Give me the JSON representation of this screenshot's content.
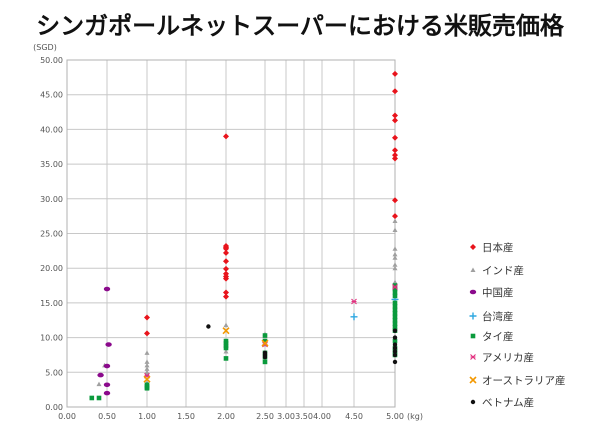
{
  "chart_data": {
    "type": "scatter",
    "title": "シンガポールネットスーパーにおける米販売価格",
    "xlabel": "(kg)",
    "ylabel": "(SGD)",
    "xticks": [
      0,
      0.5,
      1,
      1.5,
      2,
      2.5,
      3,
      3.5,
      4,
      4.5,
      5
    ],
    "xtick_labels": [
      "0.00",
      "0.50",
      "1.00",
      "1.50",
      "2.00",
      "2.50",
      "3.00",
      "3.50",
      "4.00",
      "4.50",
      "5.00"
    ],
    "yticks": [
      0,
      5,
      10,
      15,
      20,
      25,
      30,
      35,
      40,
      45,
      50
    ],
    "ytick_labels": [
      "0.00",
      "5.00",
      "10.00",
      "15.00",
      "20.00",
      "25.00",
      "30.00",
      "35.00",
      "40.00",
      "45.00",
      "50.00"
    ],
    "xlim": [
      0,
      5
    ],
    "ylim": [
      0,
      50
    ],
    "grid": true,
    "legend_position": "right",
    "series": [
      {
        "name": "日本産",
        "marker": "diamond",
        "color": "#e8141c",
        "points": [
          [
            1,
            12.9
          ],
          [
            1,
            10.6
          ],
          [
            2,
            39.0
          ],
          [
            2,
            23.2
          ],
          [
            2,
            23.0
          ],
          [
            2,
            22.8
          ],
          [
            2,
            22.2
          ],
          [
            2,
            21.0
          ],
          [
            2,
            19.9
          ],
          [
            2,
            19.2
          ],
          [
            2,
            18.8
          ],
          [
            2,
            18.5
          ],
          [
            2,
            16.5
          ],
          [
            2,
            15.9
          ],
          [
            5,
            48.0
          ],
          [
            5,
            45.5
          ],
          [
            5,
            42.0
          ],
          [
            5,
            41.3
          ],
          [
            5,
            38.8
          ],
          [
            5,
            37.0
          ],
          [
            5,
            36.3
          ],
          [
            5,
            35.8
          ],
          [
            5,
            29.8
          ],
          [
            5,
            27.5
          ]
        ]
      },
      {
        "name": "インド産",
        "marker": "triangle",
        "color": "#a0a0a0",
        "points": [
          [
            0.4,
            3.3
          ],
          [
            0.47,
            6.0
          ],
          [
            1,
            7.8
          ],
          [
            1,
            6.5
          ],
          [
            1,
            6.0
          ],
          [
            1,
            5.5
          ],
          [
            1,
            5.0
          ],
          [
            1,
            4.8
          ],
          [
            1,
            3.5
          ],
          [
            2,
            11.8
          ],
          [
            2,
            8.0
          ],
          [
            2.5,
            10.5
          ],
          [
            2.5,
            10.2
          ],
          [
            2.5,
            9.0
          ],
          [
            5,
            26.8
          ],
          [
            5,
            25.5
          ],
          [
            5,
            22.8
          ],
          [
            5,
            22.0
          ],
          [
            5,
            21.5
          ],
          [
            5,
            20.5
          ],
          [
            5,
            20.0
          ],
          [
            5,
            18.0
          ],
          [
            5,
            17.0
          ]
        ]
      },
      {
        "name": "中国産",
        "marker": "pill",
        "color": "#8b0a8c",
        "points": [
          [
            0.5,
            17.0
          ],
          [
            0.52,
            9.0
          ],
          [
            0.5,
            5.9
          ],
          [
            0.42,
            4.6
          ],
          [
            0.5,
            3.2
          ],
          [
            0.5,
            2.0
          ]
        ]
      },
      {
        "name": "台湾産",
        "marker": "plus",
        "color": "#2ea7e0",
        "points": [
          [
            4.5,
            13.0
          ],
          [
            5,
            15.5
          ]
        ]
      },
      {
        "name": "タイ産",
        "marker": "square",
        "color": "#0a9a3c",
        "points": [
          [
            0.31,
            1.3
          ],
          [
            0.4,
            1.3
          ],
          [
            1,
            3.2
          ],
          [
            1,
            3.0
          ],
          [
            1,
            2.8
          ],
          [
            1,
            2.7
          ],
          [
            2,
            9.5
          ],
          [
            2,
            9.2
          ],
          [
            2,
            8.8
          ],
          [
            2,
            8.5
          ],
          [
            2,
            7.0
          ],
          [
            2.5,
            10.3
          ],
          [
            2.5,
            9.5
          ],
          [
            2.5,
            7.8
          ],
          [
            2.5,
            7.2
          ],
          [
            2.5,
            6.5
          ],
          [
            5,
            17.5
          ],
          [
            5,
            17.0
          ],
          [
            5,
            16.5
          ],
          [
            5,
            16.0
          ],
          [
            5,
            15.0
          ],
          [
            5,
            14.5
          ],
          [
            5,
            14.0
          ],
          [
            5,
            13.5
          ],
          [
            5,
            13.0
          ],
          [
            5,
            12.5
          ],
          [
            5,
            12.0
          ],
          [
            5,
            11.5
          ],
          [
            5,
            11.0
          ],
          [
            5,
            9.5
          ],
          [
            5,
            8.5
          ],
          [
            5,
            8.0
          ],
          [
            5,
            7.5
          ]
        ]
      },
      {
        "name": "アメリカ産",
        "marker": "star",
        "color": "#e2307f",
        "points": [
          [
            1,
            4.5
          ],
          [
            2.5,
            9.0
          ],
          [
            4.5,
            15.2
          ],
          [
            5,
            17.3
          ]
        ]
      },
      {
        "name": "オーストラリア産",
        "marker": "x",
        "color": "#f39800",
        "points": [
          [
            1,
            4.0
          ],
          [
            2,
            11.0
          ],
          [
            2.5,
            9.2
          ]
        ]
      },
      {
        "name": "ベトナム産",
        "marker": "circle",
        "color": "#111111",
        "points": [
          [
            1.78,
            11.6
          ],
          [
            2.5,
            7.8
          ],
          [
            2.5,
            7.5
          ],
          [
            2.5,
            7.2
          ],
          [
            5,
            11.0
          ],
          [
            5,
            10.0
          ],
          [
            5,
            9.0
          ],
          [
            5,
            8.5
          ],
          [
            5,
            8.0
          ],
          [
            5,
            7.5
          ],
          [
            5,
            6.5
          ]
        ]
      }
    ]
  }
}
